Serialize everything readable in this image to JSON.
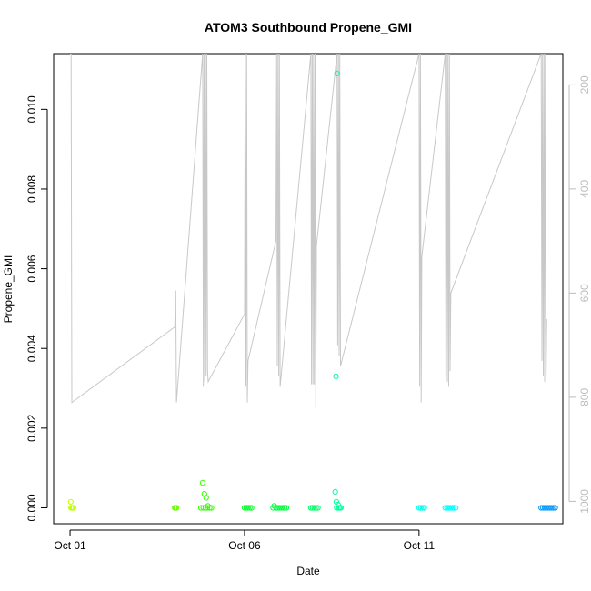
{
  "chart_data": {
    "type": "scatter",
    "title": "ATOM3 Southbound Propene_GMI",
    "xlabel": "Date",
    "ylabel": "Propene_GMI",
    "x_ticks": [
      {
        "label": "Oct 01",
        "day": 1
      },
      {
        "label": "Oct 06",
        "day": 6
      },
      {
        "label": "Oct 11",
        "day": 11
      }
    ],
    "xlim": [
      0.53,
      15.12
    ],
    "ylim": [
      -0.0004,
      0.0114
    ],
    "y_ticks": [
      0.0,
      0.002,
      0.004,
      0.006,
      0.008,
      0.01
    ],
    "y_tick_labels": [
      "0.000",
      "0.002",
      "0.004",
      "0.006",
      "0.008",
      "0.010"
    ],
    "right_axis": {
      "color": "#bdbdbd",
      "reversed": true,
      "ticks": [
        200,
        400,
        600,
        800,
        1000
      ],
      "tick_labels": [
        "200",
        "400",
        "600",
        "800",
        "1000"
      ],
      "lim": [
        1043,
        140
      ]
    },
    "series": [
      {
        "color": "#bfff00",
        "points": [
          {
            "day": 1.02,
            "y": 0.00015
          },
          {
            "day": 1.03,
            "y": 0.0
          },
          {
            "day": 1.06,
            "y": 0.0
          },
          {
            "day": 1.08,
            "y": 0.0
          },
          {
            "day": 1.1,
            "y": 0.0
          }
        ]
      },
      {
        "color": "#66ff00",
        "points": [
          {
            "day": 4.0,
            "y": 0.0
          },
          {
            "day": 4.02,
            "y": 0.0
          },
          {
            "day": 4.05,
            "y": 0.0
          }
        ]
      },
      {
        "color": "#33ff00",
        "points": [
          {
            "day": 4.8,
            "y": 0.00063
          },
          {
            "day": 4.85,
            "y": 0.00035
          },
          {
            "day": 4.9,
            "y": 0.00025
          },
          {
            "day": 4.95,
            "y": 5e-05
          },
          {
            "day": 4.75,
            "y": 0.0
          },
          {
            "day": 4.82,
            "y": 0.0
          },
          {
            "day": 4.88,
            "y": 0.0
          },
          {
            "day": 4.93,
            "y": 0.0
          },
          {
            "day": 5.0,
            "y": 0.0
          },
          {
            "day": 5.05,
            "y": 0.0
          }
        ]
      },
      {
        "color": "#00ff26",
        "points": [
          {
            "day": 6.0,
            "y": 0.0
          },
          {
            "day": 6.05,
            "y": 0.0
          },
          {
            "day": 6.1,
            "y": 0.0
          },
          {
            "day": 6.15,
            "y": 0.0
          },
          {
            "day": 6.2,
            "y": 0.0
          }
        ]
      },
      {
        "color": "#00ff40",
        "points": [
          {
            "day": 6.85,
            "y": 5e-05
          },
          {
            "day": 6.82,
            "y": 0.0
          },
          {
            "day": 6.9,
            "y": 0.0
          },
          {
            "day": 6.95,
            "y": 0.0
          },
          {
            "day": 7.0,
            "y": 0.0
          },
          {
            "day": 7.05,
            "y": 0.0
          },
          {
            "day": 7.1,
            "y": 0.0
          },
          {
            "day": 7.15,
            "y": 0.0
          },
          {
            "day": 7.2,
            "y": 0.0
          }
        ]
      },
      {
        "color": "#00ff66",
        "points": [
          {
            "day": 7.9,
            "y": 0.0
          },
          {
            "day": 7.95,
            "y": 0.0
          },
          {
            "day": 8.0,
            "y": 0.0
          },
          {
            "day": 8.05,
            "y": 0.0
          },
          {
            "day": 8.1,
            "y": 0.0
          }
        ]
      },
      {
        "color": "#00ff99",
        "points": [
          {
            "day": 8.65,
            "y": 0.0109
          },
          {
            "day": 8.62,
            "y": 0.0033
          },
          {
            "day": 8.6,
            "y": 0.0004
          },
          {
            "day": 8.63,
            "y": 0.00015
          },
          {
            "day": 8.68,
            "y": 8e-05
          },
          {
            "day": 8.7,
            "y": 0.0
          },
          {
            "day": 8.73,
            "y": 0.0
          },
          {
            "day": 8.76,
            "y": 0.0
          },
          {
            "day": 8.64,
            "y": 0.0
          }
        ]
      },
      {
        "color": "#00ffe6",
        "points": [
          {
            "day": 11.0,
            "y": 0.0
          },
          {
            "day": 11.05,
            "y": 0.0
          },
          {
            "day": 11.1,
            "y": 0.0
          },
          {
            "day": 11.15,
            "y": 0.0
          }
        ]
      },
      {
        "color": "#00ffff",
        "points": [
          {
            "day": 11.75,
            "y": 0.0
          },
          {
            "day": 11.8,
            "y": 0.0
          },
          {
            "day": 11.85,
            "y": 0.0
          },
          {
            "day": 11.9,
            "y": 0.0
          },
          {
            "day": 11.95,
            "y": 0.0
          },
          {
            "day": 12.0,
            "y": 0.0
          },
          {
            "day": 12.05,
            "y": 0.0
          }
        ]
      },
      {
        "color": "#0099ff",
        "points": [
          {
            "day": 14.5,
            "y": 0.0
          },
          {
            "day": 14.55,
            "y": 0.0
          },
          {
            "day": 14.6,
            "y": 0.0
          },
          {
            "day": 14.65,
            "y": 0.0
          },
          {
            "day": 14.7,
            "y": 0.0
          },
          {
            "day": 14.75,
            "y": 0.0
          },
          {
            "day": 14.8,
            "y": 0.0
          },
          {
            "day": 14.85,
            "y": 0.0
          },
          {
            "day": 14.9,
            "y": 0.0
          }
        ]
      }
    ],
    "pressure_line": {
      "color": "#c8c8c8",
      "points": [
        [
          1.0,
          140
        ],
        [
          1.03,
          140
        ],
        [
          1.05,
          810
        ],
        [
          4.0,
          665
        ],
        [
          4.03,
          595
        ],
        [
          4.05,
          810
        ],
        [
          4.8,
          140
        ],
        [
          4.82,
          780
        ],
        [
          4.84,
          140
        ],
        [
          4.86,
          770
        ],
        [
          4.88,
          140
        ],
        [
          4.9,
          760
        ],
        [
          4.92,
          140
        ],
        [
          4.94,
          750
        ],
        [
          4.96,
          770
        ],
        [
          6.0,
          640
        ],
        [
          6.02,
          140
        ],
        [
          6.04,
          780
        ],
        [
          6.06,
          140
        ],
        [
          6.08,
          810
        ],
        [
          6.1,
          730
        ],
        [
          6.9,
          500
        ],
        [
          6.92,
          140
        ],
        [
          6.94,
          740
        ],
        [
          6.96,
          140
        ],
        [
          6.98,
          760
        ],
        [
          7.0,
          140
        ],
        [
          7.02,
          780
        ],
        [
          7.9,
          140
        ],
        [
          7.92,
          775
        ],
        [
          7.94,
          140
        ],
        [
          7.96,
          775
        ],
        [
          7.98,
          140
        ],
        [
          8.0,
          775
        ],
        [
          8.02,
          140
        ],
        [
          8.04,
          820
        ],
        [
          8.06,
          510
        ],
        [
          8.65,
          140
        ],
        [
          8.67,
          700
        ],
        [
          8.69,
          140
        ],
        [
          8.71,
          720
        ],
        [
          8.73,
          140
        ],
        [
          8.75,
          740
        ],
        [
          11.0,
          140
        ],
        [
          11.02,
          780
        ],
        [
          11.04,
          140
        ],
        [
          11.06,
          810
        ],
        [
          11.08,
          530
        ],
        [
          11.75,
          140
        ],
        [
          11.77,
          760
        ],
        [
          11.79,
          140
        ],
        [
          11.81,
          770
        ],
        [
          11.83,
          140
        ],
        [
          11.85,
          780
        ],
        [
          11.87,
          140
        ],
        [
          11.89,
          750
        ],
        [
          11.91,
          600
        ],
        [
          14.5,
          140
        ],
        [
          14.52,
          730
        ],
        [
          14.54,
          140
        ],
        [
          14.56,
          760
        ],
        [
          14.58,
          140
        ],
        [
          14.6,
          770
        ],
        [
          14.62,
          140
        ],
        [
          14.64,
          760
        ],
        [
          14.66,
          650
        ]
      ]
    },
    "grid": false,
    "legend": "none"
  }
}
